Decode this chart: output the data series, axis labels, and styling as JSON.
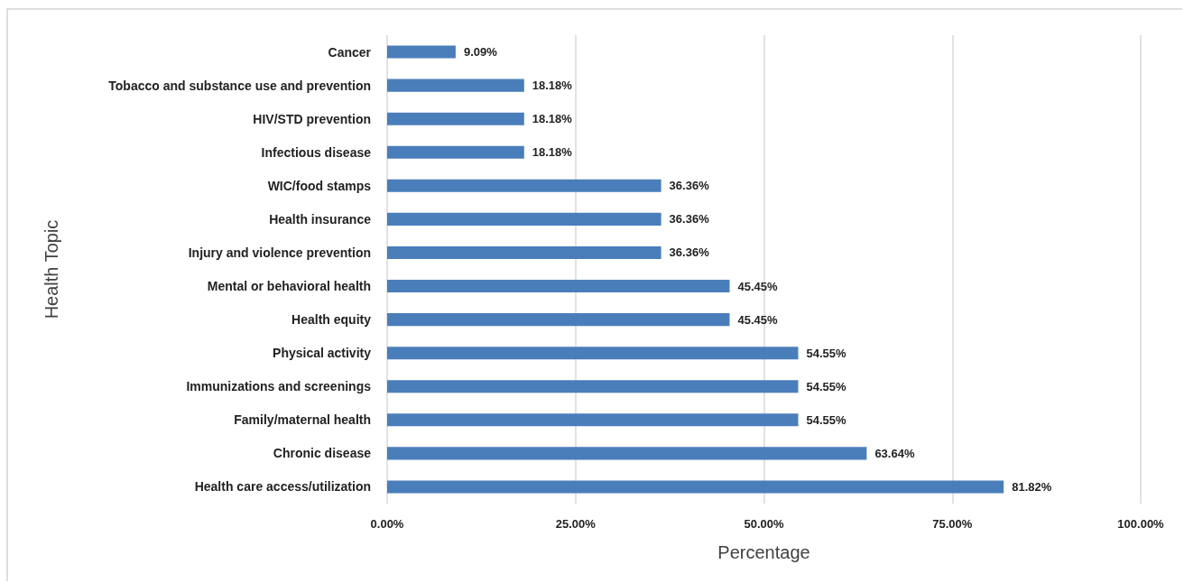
{
  "chart_data": {
    "type": "bar",
    "orientation": "horizontal",
    "xlabel": "Percentage",
    "ylabel": "Health Topic",
    "categories": [
      "Cancer",
      "Tobacco and substance use and prevention",
      "HIV/STD prevention",
      "Infectious disease",
      "WIC/food stamps",
      "Health insurance",
      "Injury and violence prevention",
      "Mental or behavioral health",
      "Health equity",
      "Physical activity",
      "Immunizations and screenings",
      "Family/maternal health",
      "Chronic disease",
      "Health care access/utilization"
    ],
    "values": [
      9.09,
      18.18,
      18.18,
      18.18,
      36.36,
      36.36,
      36.36,
      45.45,
      45.45,
      54.55,
      54.55,
      54.55,
      63.64,
      81.82
    ],
    "value_labels": [
      "9.09%",
      "18.18%",
      "18.18%",
      "18.18%",
      "36.36%",
      "36.36%",
      "36.36%",
      "45.45%",
      "45.45%",
      "54.55%",
      "54.55%",
      "54.55%",
      "63.64%",
      "81.82%"
    ],
    "color": "#4a7ebb",
    "xlim": [
      0,
      100
    ],
    "xticks": [
      {
        "value": 0,
        "label": "0.00%"
      },
      {
        "value": 25,
        "label": "25.00%"
      },
      {
        "value": 50,
        "label": "50.00%"
      },
      {
        "value": 75,
        "label": "75.00%"
      },
      {
        "value": 100,
        "label": "100.00%"
      }
    ],
    "grid": "x"
  }
}
